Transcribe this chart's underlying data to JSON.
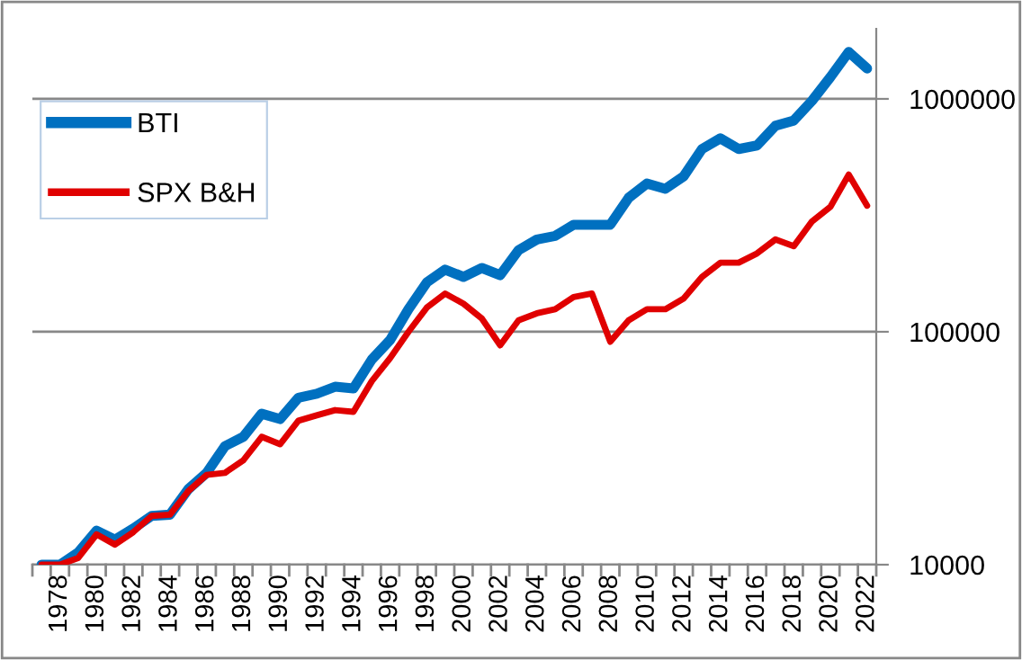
{
  "chart_data": {
    "type": "line",
    "categories": [
      null,
      "1978",
      null,
      "1980",
      null,
      "1982",
      null,
      "1984",
      null,
      "1986",
      null,
      "1988",
      null,
      "1990",
      null,
      "1992",
      null,
      "1994",
      null,
      "1996",
      null,
      "1998",
      null,
      "2000",
      null,
      "2002",
      null,
      "2004",
      null,
      "2006",
      null,
      "2008",
      null,
      "2010",
      null,
      "2012",
      null,
      "2014",
      null,
      "2016",
      null,
      "2018",
      null,
      "2020",
      null,
      "2022"
    ],
    "series": [
      {
        "name": "BTI",
        "color": "#0070c0",
        "values": [
          10000,
          10000,
          11300,
          14000,
          12800,
          14300,
          16200,
          16400,
          21100,
          24800,
          32300,
          35400,
          44500,
          42200,
          52100,
          54200,
          58100,
          57100,
          76000,
          92200,
          125000,
          163000,
          185000,
          172000,
          188000,
          175000,
          224000,
          249000,
          258000,
          288000,
          288000,
          288000,
          376000,
          433000,
          411000,
          465000,
          609000,
          677000,
          609000,
          631000,
          766000,
          807000,
          982000,
          1240000,
          1590000,
          1350000
        ]
      },
      {
        "name": "SPX B&H",
        "color": "#e00000",
        "values": [
          10000,
          10000,
          10700,
          13500,
          12200,
          13800,
          16200,
          16400,
          20700,
          24300,
          24800,
          28100,
          35400,
          32900,
          41500,
          43800,
          46100,
          45300,
          61400,
          77100,
          100000,
          127000,
          146000,
          132000,
          114000,
          87500,
          112000,
          120000,
          125000,
          141000,
          146000,
          90600,
          112000,
          125000,
          125000,
          139000,
          172000,
          198000,
          198000,
          217000,
          249000,
          233000,
          298000,
          344000,
          473000,
          348000
        ]
      }
    ],
    "log": "y",
    "ylim": [
      10000,
      2000000
    ],
    "yticks": [
      10000,
      100000,
      1000000
    ],
    "grid": "y",
    "legend": "top left"
  }
}
